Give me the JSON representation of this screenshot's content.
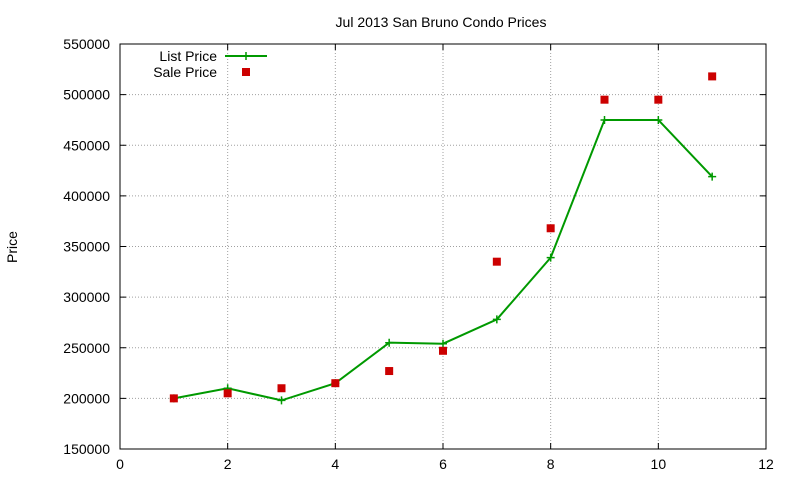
{
  "chart_data": {
    "type": "line",
    "title": "Jul 2013 San Bruno Condo Prices",
    "xlabel": "",
    "ylabel": "Price",
    "xlim": [
      0,
      12
    ],
    "ylim": [
      150000,
      550000
    ],
    "xticks": [
      0,
      2,
      4,
      6,
      8,
      10,
      12
    ],
    "yticks": [
      150000,
      200000,
      250000,
      300000,
      350000,
      400000,
      450000,
      500000,
      550000
    ],
    "grid": true,
    "legend_position": "top-left",
    "series": [
      {
        "name": "List Price",
        "style": "line-with-plus-markers",
        "color": "#009900",
        "x": [
          1,
          2,
          3,
          4,
          5,
          6,
          7,
          8,
          9,
          10,
          11
        ],
        "y": [
          200000,
          210000,
          198000,
          215000,
          255000,
          254000,
          278000,
          339000,
          475000,
          475000,
          419000
        ]
      },
      {
        "name": "Sale Price",
        "style": "square-markers",
        "color": "#cc0000",
        "x": [
          1,
          2,
          3,
          4,
          5,
          6,
          7,
          8,
          9,
          10,
          11
        ],
        "y": [
          200000,
          205000,
          210000,
          215000,
          227000,
          247000,
          335000,
          368000,
          495000,
          495000,
          518000
        ]
      }
    ]
  }
}
